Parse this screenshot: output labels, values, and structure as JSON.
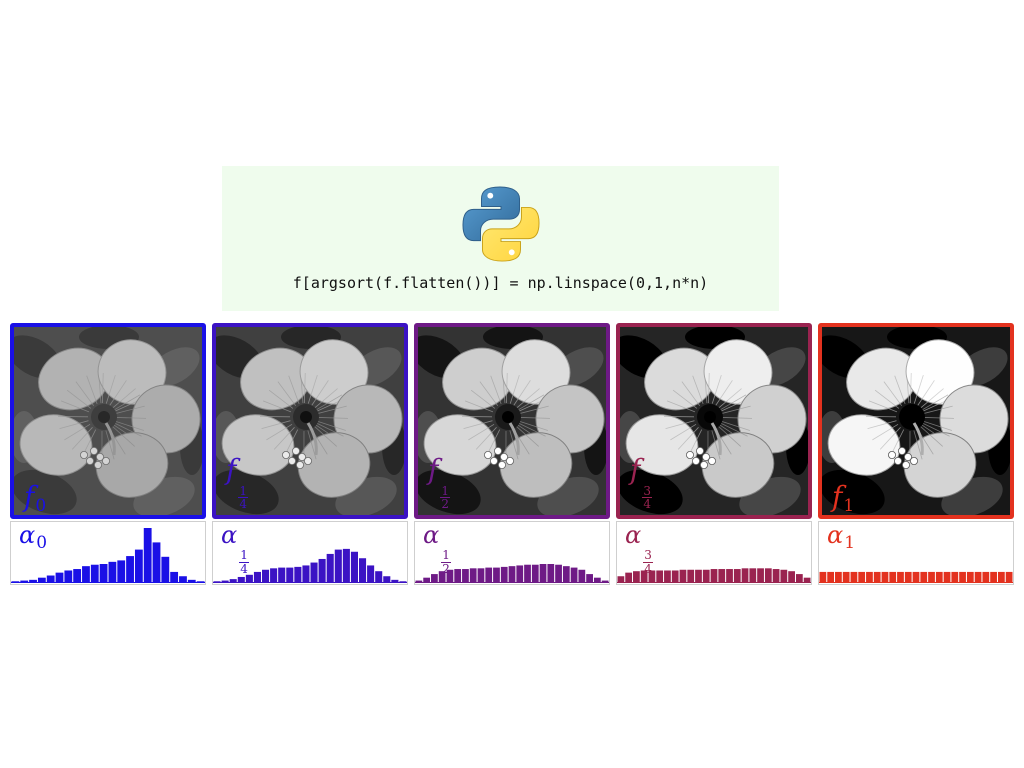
{
  "code": {
    "text": "f[argsort(f.flatten())] = np.linspace(0,1,n*n)",
    "logo_icon": "python-logo-icon",
    "background": "#effced"
  },
  "panels": [
    {
      "id": "f0",
      "color": "#1a10e6",
      "image_label": {
        "base": "f",
        "sub": "0"
      },
      "hist_label": {
        "base": "α",
        "sub": "0"
      },
      "image_contrast": 0.0,
      "hist_values": [
        1,
        2,
        3,
        6,
        9,
        13,
        16,
        18,
        22,
        24,
        25,
        28,
        30,
        36,
        45,
        75,
        55,
        35,
        14,
        8,
        3,
        1
      ]
    },
    {
      "id": "f1_4",
      "color": "#3b13c4",
      "image_label": {
        "base": "f",
        "num": "1",
        "den": "4"
      },
      "hist_label": {
        "base": "α",
        "num": "1",
        "den": "4"
      },
      "image_contrast": 0.25,
      "hist_values": [
        1,
        2,
        4,
        7,
        10,
        14,
        17,
        19,
        20,
        20,
        21,
        23,
        27,
        32,
        39,
        45,
        46,
        42,
        33,
        23,
        15,
        8,
        3,
        1
      ]
    },
    {
      "id": "f1_2",
      "color": "#6e1a86",
      "image_label": {
        "base": "f",
        "num": "1",
        "den": "2"
      },
      "hist_label": {
        "base": "α",
        "num": "1",
        "den": "2"
      },
      "image_contrast": 0.5,
      "hist_values": [
        2,
        6,
        11,
        15,
        17,
        18,
        18,
        19,
        19,
        20,
        20,
        21,
        22,
        23,
        24,
        24,
        25,
        25,
        24,
        22,
        20,
        17,
        11,
        6,
        2
      ]
    },
    {
      "id": "f3_4",
      "color": "#9a2350",
      "image_label": {
        "base": "f",
        "num": "3",
        "den": "4"
      },
      "hist_label": {
        "base": "α",
        "num": "3",
        "den": "4"
      },
      "image_contrast": 0.75,
      "hist_values": [
        8,
        13,
        15,
        16,
        16,
        16,
        16,
        16,
        17,
        17,
        17,
        17,
        18,
        18,
        18,
        18,
        19,
        19,
        19,
        19,
        18,
        17,
        15,
        11,
        6
      ]
    },
    {
      "id": "f1",
      "color": "#e3321f",
      "image_label": {
        "base": "f",
        "sub": "1"
      },
      "hist_label": {
        "base": "α",
        "sub": "1"
      },
      "image_contrast": 1.0,
      "hist_values": [
        14,
        14,
        14,
        14,
        14,
        14,
        14,
        14,
        14,
        14,
        14,
        14,
        14,
        14,
        14,
        14,
        14,
        14,
        14,
        14,
        14,
        14,
        14,
        14,
        14
      ]
    }
  ]
}
